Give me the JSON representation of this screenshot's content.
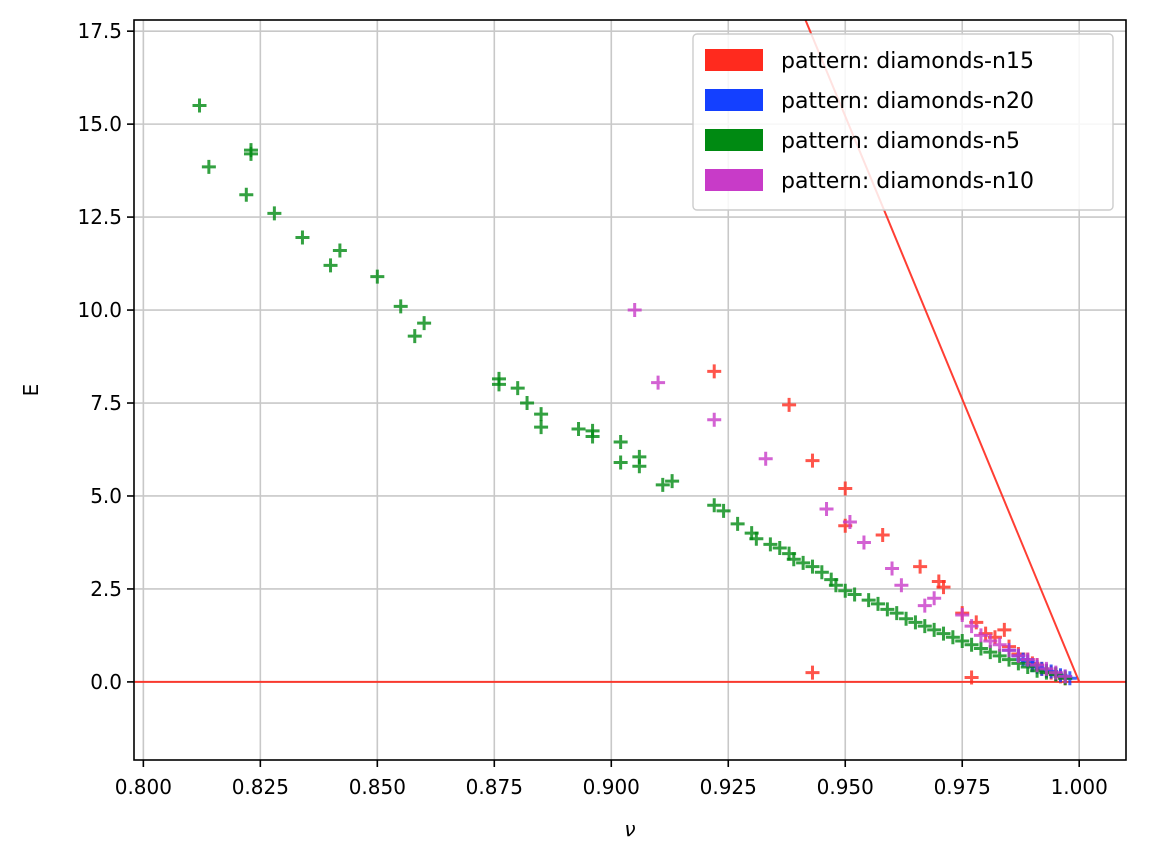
{
  "chart_data": {
    "type": "scatter",
    "title": "",
    "xlabel": "ν",
    "ylabel": "E",
    "xlim": [
      0.798,
      1.01
    ],
    "ylim": [
      -2.1,
      17.8
    ],
    "xticks": [
      0.8,
      0.825,
      0.85,
      0.875,
      0.9,
      0.925,
      0.95,
      0.975,
      1.0
    ],
    "xtick_labels": [
      "0.800",
      "0.825",
      "0.850",
      "0.875",
      "0.900",
      "0.925",
      "0.950",
      "0.975",
      "1.000"
    ],
    "yticks": [
      0,
      2.5,
      5,
      7.5,
      10,
      12.5,
      15,
      17.5
    ],
    "ytick_labels": [
      "0.0",
      "2.5",
      "5.0",
      "7.5",
      "10.0",
      "12.5",
      "15.0",
      "17.5"
    ],
    "grid": true,
    "legend_position": "top-right",
    "marker": "plus",
    "series": [
      {
        "name": "pattern: diamonds-n15",
        "color": "#ff2a1e",
        "points": [
          [
            0.922,
            8.35
          ],
          [
            0.938,
            7.45
          ],
          [
            0.943,
            5.95
          ],
          [
            0.95,
            5.2
          ],
          [
            0.95,
            4.2
          ],
          [
            0.958,
            3.95
          ],
          [
            0.966,
            3.1
          ],
          [
            0.97,
            2.7
          ],
          [
            0.971,
            2.55
          ],
          [
            0.975,
            1.85
          ],
          [
            0.978,
            1.6
          ],
          [
            0.98,
            1.3
          ],
          [
            0.982,
            1.2
          ],
          [
            0.984,
            1.4
          ],
          [
            0.985,
            0.95
          ],
          [
            0.987,
            0.75
          ],
          [
            0.989,
            0.6
          ],
          [
            0.99,
            0.5
          ],
          [
            0.991,
            0.45
          ],
          [
            0.992,
            0.35
          ],
          [
            0.993,
            0.3
          ],
          [
            0.994,
            0.25
          ],
          [
            0.995,
            0.2
          ],
          [
            0.996,
            0.15
          ],
          [
            0.997,
            0.1
          ],
          [
            0.943,
            0.25
          ],
          [
            0.977,
            0.12
          ]
        ]
      },
      {
        "name": "pattern: diamonds-n20",
        "color": "#1440ff",
        "points": [
          [
            0.985,
            0.85
          ],
          [
            0.987,
            0.7
          ],
          [
            0.988,
            0.6
          ],
          [
            0.989,
            0.55
          ],
          [
            0.99,
            0.45
          ],
          [
            0.991,
            0.4
          ],
          [
            0.992,
            0.35
          ],
          [
            0.993,
            0.3
          ],
          [
            0.994,
            0.28
          ],
          [
            0.995,
            0.22
          ],
          [
            0.996,
            0.18
          ],
          [
            0.997,
            0.14
          ],
          [
            0.998,
            0.1
          ]
        ]
      },
      {
        "name": "pattern: diamonds-n5",
        "color": "#008a12",
        "points": [
          [
            0.812,
            15.5
          ],
          [
            0.814,
            13.85
          ],
          [
            0.822,
            13.1
          ],
          [
            0.823,
            14.3
          ],
          [
            0.823,
            14.2
          ],
          [
            0.828,
            12.6
          ],
          [
            0.834,
            11.95
          ],
          [
            0.84,
            11.2
          ],
          [
            0.842,
            11.6
          ],
          [
            0.85,
            10.9
          ],
          [
            0.855,
            10.1
          ],
          [
            0.858,
            9.3
          ],
          [
            0.86,
            9.65
          ],
          [
            0.876,
            8.15
          ],
          [
            0.876,
            8.0
          ],
          [
            0.88,
            7.9
          ],
          [
            0.882,
            7.5
          ],
          [
            0.885,
            7.2
          ],
          [
            0.885,
            6.85
          ],
          [
            0.893,
            6.8
          ],
          [
            0.896,
            6.75
          ],
          [
            0.896,
            6.6
          ],
          [
            0.902,
            6.45
          ],
          [
            0.902,
            5.9
          ],
          [
            0.906,
            6.05
          ],
          [
            0.906,
            5.8
          ],
          [
            0.911,
            5.3
          ],
          [
            0.913,
            5.4
          ],
          [
            0.922,
            4.75
          ],
          [
            0.924,
            4.6
          ],
          [
            0.927,
            4.25
          ],
          [
            0.93,
            4.0
          ],
          [
            0.931,
            3.85
          ],
          [
            0.934,
            3.7
          ],
          [
            0.936,
            3.6
          ],
          [
            0.938,
            3.45
          ],
          [
            0.939,
            3.3
          ],
          [
            0.941,
            3.2
          ],
          [
            0.943,
            3.1
          ],
          [
            0.945,
            2.95
          ],
          [
            0.947,
            2.75
          ],
          [
            0.948,
            2.6
          ],
          [
            0.95,
            2.45
          ],
          [
            0.952,
            2.35
          ],
          [
            0.955,
            2.2
          ],
          [
            0.957,
            2.1
          ],
          [
            0.959,
            1.95
          ],
          [
            0.961,
            1.85
          ],
          [
            0.963,
            1.7
          ],
          [
            0.965,
            1.6
          ],
          [
            0.967,
            1.5
          ],
          [
            0.969,
            1.4
          ],
          [
            0.971,
            1.3
          ],
          [
            0.973,
            1.2
          ],
          [
            0.975,
            1.1
          ],
          [
            0.977,
            1.0
          ],
          [
            0.979,
            0.9
          ],
          [
            0.981,
            0.8
          ],
          [
            0.983,
            0.7
          ],
          [
            0.985,
            0.6
          ],
          [
            0.987,
            0.5
          ],
          [
            0.989,
            0.4
          ],
          [
            0.991,
            0.3
          ],
          [
            0.993,
            0.25
          ],
          [
            0.995,
            0.2
          ],
          [
            0.997,
            0.1
          ]
        ]
      },
      {
        "name": "pattern: diamonds-n10",
        "color": "#c83bc8",
        "points": [
          [
            0.905,
            10.0
          ],
          [
            0.91,
            8.05
          ],
          [
            0.922,
            7.05
          ],
          [
            0.933,
            6.0
          ],
          [
            0.946,
            4.65
          ],
          [
            0.951,
            4.3
          ],
          [
            0.954,
            3.75
          ],
          [
            0.96,
            3.05
          ],
          [
            0.962,
            2.6
          ],
          [
            0.967,
            2.05
          ],
          [
            0.969,
            2.25
          ],
          [
            0.975,
            1.8
          ],
          [
            0.977,
            1.5
          ],
          [
            0.979,
            1.25
          ],
          [
            0.981,
            1.1
          ],
          [
            0.983,
            1.0
          ],
          [
            0.985,
            0.85
          ],
          [
            0.987,
            0.7
          ],
          [
            0.989,
            0.6
          ],
          [
            0.991,
            0.45
          ],
          [
            0.993,
            0.35
          ],
          [
            0.995,
            0.25
          ],
          [
            0.997,
            0.15
          ]
        ]
      }
    ],
    "lines": [
      {
        "color": "#ff2a1e",
        "points": [
          [
            0.9415,
            17.8
          ],
          [
            1.0,
            0.0
          ]
        ]
      },
      {
        "color": "#ff2a1e",
        "points": [
          [
            0.798,
            0.0
          ],
          [
            1.01,
            0.0
          ]
        ]
      }
    ]
  }
}
